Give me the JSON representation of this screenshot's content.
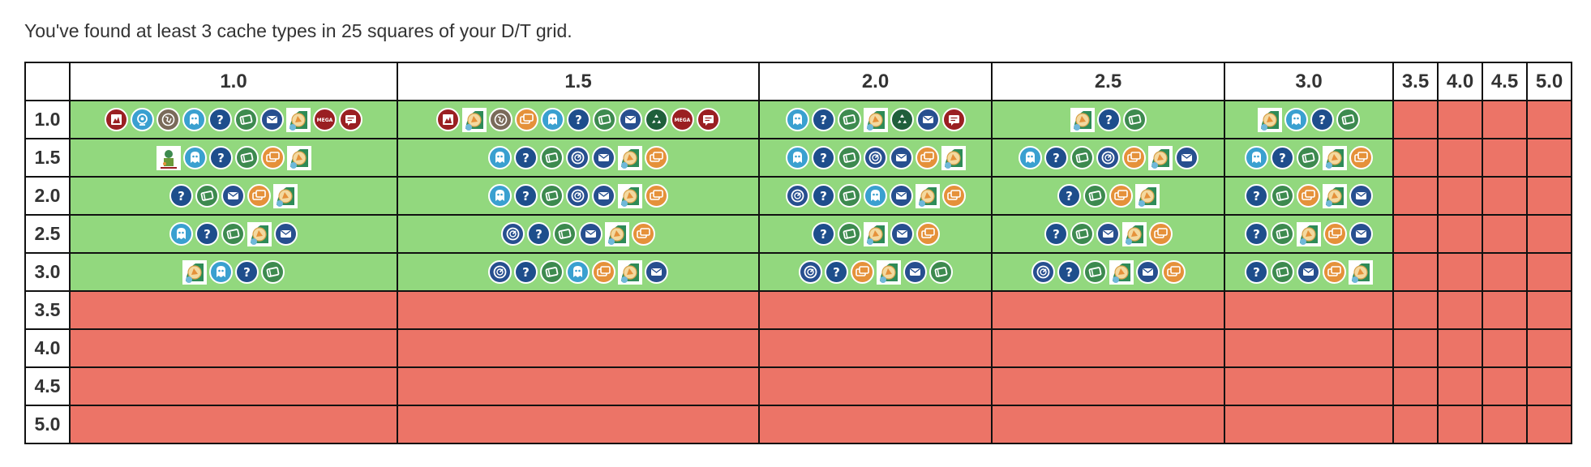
{
  "summary_text": "You've found at least 3 cache types in 25 squares of your D/T grid.",
  "column_headers": [
    "1.0",
    "1.5",
    "2.0",
    "2.5",
    "3.0",
    "3.5",
    "4.0",
    "4.5",
    "5.0"
  ],
  "rows": [
    {
      "label": "1.0",
      "cells": [
        [
          "earthcache-icon",
          "webcam-icon",
          "virtual-icon",
          "letterbox-icon",
          "mystery-icon",
          "traditional-icon",
          "cito-icon",
          "wherigo-icon",
          "mega-event-icon",
          "event-icon"
        ],
        [
          "earthcache-icon",
          "wherigo-icon",
          "virtual-icon",
          "multi-icon",
          "letterbox-icon",
          "mystery-icon",
          "traditional-icon",
          "cito-icon",
          "cito-green-icon",
          "mega-event-icon",
          "event-icon"
        ],
        [
          "letterbox-icon",
          "mystery-icon",
          "traditional-icon",
          "wherigo-icon",
          "cito-green-icon",
          "cito-icon",
          "event-icon"
        ],
        [
          "wherigo-icon",
          "mystery-icon",
          "traditional-icon"
        ],
        [
          "wherigo-icon",
          "letterbox-icon",
          "mystery-icon",
          "traditional-icon"
        ],
        [],
        [],
        [],
        []
      ]
    },
    {
      "label": "1.5",
      "cells": [
        [
          "benchmark-icon",
          "letterbox-icon",
          "mystery-icon",
          "traditional-icon",
          "multi-icon",
          "wherigo-icon"
        ],
        [
          "letterbox-icon",
          "mystery-icon",
          "traditional-icon",
          "gps-adventures-icon",
          "cito-icon",
          "wherigo-icon",
          "multi-icon"
        ],
        [
          "letterbox-icon",
          "mystery-icon",
          "traditional-icon",
          "gps-adventures-icon",
          "cito-icon",
          "multi-icon",
          "wherigo-icon"
        ],
        [
          "letterbox-icon",
          "mystery-icon",
          "traditional-icon",
          "gps-adventures-icon",
          "multi-icon",
          "wherigo-icon",
          "cito-icon"
        ],
        [
          "letterbox-icon",
          "mystery-icon",
          "traditional-icon",
          "wherigo-icon",
          "multi-icon"
        ],
        [],
        [],
        [],
        []
      ]
    },
    {
      "label": "2.0",
      "cells": [
        [
          "mystery-icon",
          "traditional-icon",
          "cito-icon",
          "multi-icon",
          "wherigo-icon"
        ],
        [
          "letterbox-icon",
          "mystery-icon",
          "traditional-icon",
          "gps-adventures-icon",
          "cito-icon",
          "wherigo-icon",
          "multi-icon"
        ],
        [
          "gps-adventures-icon",
          "mystery-icon",
          "traditional-icon",
          "letterbox-icon",
          "cito-icon",
          "wherigo-icon",
          "multi-icon"
        ],
        [
          "mystery-icon",
          "traditional-icon",
          "multi-icon",
          "wherigo-icon"
        ],
        [
          "mystery-icon",
          "traditional-icon",
          "multi-icon",
          "wherigo-icon",
          "cito-icon"
        ],
        [],
        [],
        [],
        []
      ]
    },
    {
      "label": "2.5",
      "cells": [
        [
          "letterbox-icon",
          "mystery-icon",
          "traditional-icon",
          "wherigo-icon",
          "cito-icon"
        ],
        [
          "gps-adventures-icon",
          "mystery-icon",
          "traditional-icon",
          "cito-icon",
          "wherigo-icon",
          "multi-icon"
        ],
        [
          "mystery-icon",
          "traditional-icon",
          "wherigo-icon",
          "cito-icon",
          "multi-icon"
        ],
        [
          "mystery-icon",
          "traditional-icon",
          "cito-icon",
          "wherigo-icon",
          "multi-icon"
        ],
        [
          "mystery-icon",
          "traditional-icon",
          "wherigo-icon",
          "multi-icon",
          "cito-icon"
        ],
        [],
        [],
        [],
        []
      ]
    },
    {
      "label": "3.0",
      "cells": [
        [
          "wherigo-icon",
          "letterbox-icon",
          "mystery-icon",
          "traditional-icon"
        ],
        [
          "gps-adventures-icon",
          "mystery-icon",
          "traditional-icon",
          "letterbox-icon",
          "multi-icon",
          "wherigo-icon",
          "cito-icon"
        ],
        [
          "gps-adventures-icon",
          "mystery-icon",
          "multi-icon",
          "wherigo-icon",
          "cito-icon",
          "traditional-icon"
        ],
        [
          "gps-adventures-icon",
          "mystery-icon",
          "traditional-icon",
          "wherigo-icon",
          "cito-icon",
          "multi-icon"
        ],
        [
          "mystery-icon",
          "traditional-icon",
          "cito-icon",
          "multi-icon",
          "wherigo-icon"
        ],
        [],
        [],
        [],
        []
      ]
    },
    {
      "label": "3.5",
      "cells": [
        [],
        [],
        [],
        [],
        [],
        [],
        [],
        [],
        []
      ]
    },
    {
      "label": "4.0",
      "cells": [
        [],
        [],
        [],
        [],
        [],
        [],
        [],
        [],
        []
      ]
    },
    {
      "label": "4.5",
      "cells": [
        [],
        [],
        [],
        [],
        [],
        [],
        [],
        [],
        []
      ]
    },
    {
      "label": "5.0",
      "cells": [
        [],
        [],
        [],
        [],
        [],
        [],
        [],
        [],
        []
      ]
    }
  ],
  "colors": {
    "found": "#92d87e",
    "not_found": "#ec7467",
    "mystery": "#1e4e8c",
    "traditional": "#3d8a4f",
    "multi": "#e5913a",
    "letterbox": "#3aa0d0",
    "cito": "#274f8f",
    "event": "#9a1f22",
    "virtual": "#7a6a5a",
    "cito_green": "#1f5f3b"
  },
  "mega_label": "MEGA"
}
